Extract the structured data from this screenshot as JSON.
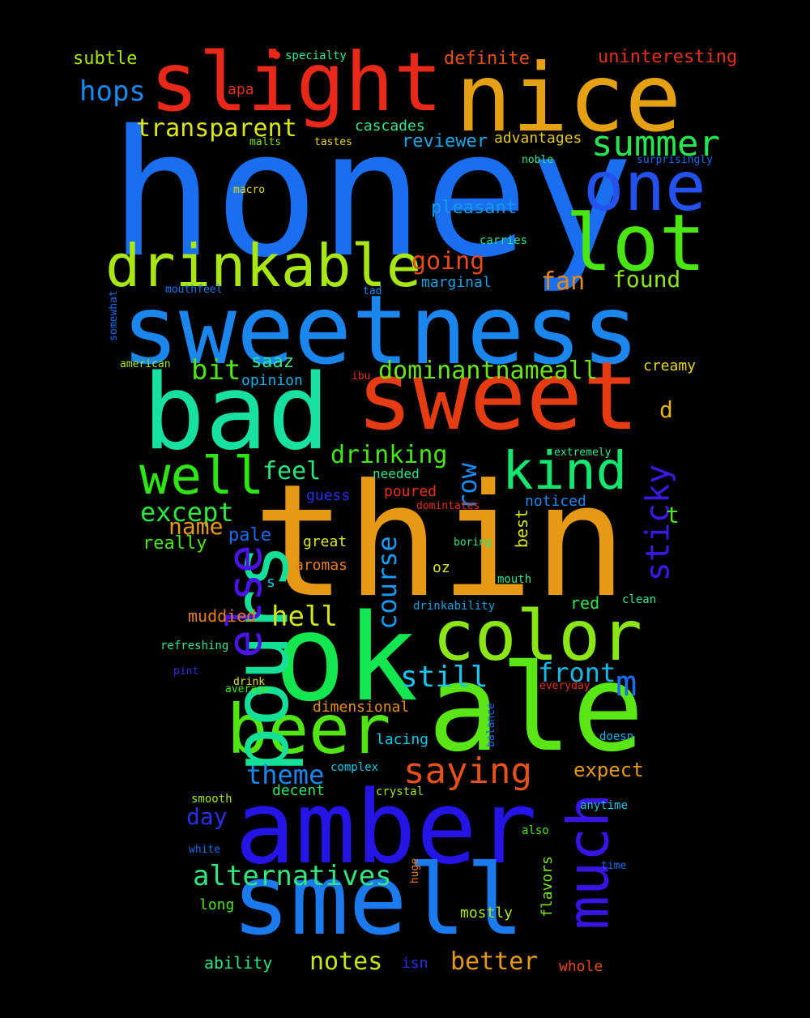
{
  "words": [
    {
      "text": "honey",
      "color": "#1a6ff0"
    },
    {
      "text": "thin",
      "color": "#e69914"
    },
    {
      "text": "sweetness",
      "color": "#1a86ee"
    },
    {
      "text": "sweet",
      "color": "#e63c14"
    },
    {
      "text": "nice",
      "color": "#e6a014"
    },
    {
      "text": "slight",
      "color": "#e82818"
    },
    {
      "text": "bad",
      "color": "#18e0a0"
    },
    {
      "text": "ok",
      "color": "#14e650"
    },
    {
      "text": "ale",
      "color": "#5ae614"
    },
    {
      "text": "amber",
      "color": "#2414e6"
    },
    {
      "text": "smell",
      "color": "#1a7aee"
    },
    {
      "text": "lot",
      "color": "#4ae614"
    },
    {
      "text": "one",
      "color": "#2452ee"
    },
    {
      "text": "drinkable",
      "color": "#a8e614"
    },
    {
      "text": "color",
      "color": "#8ae614"
    },
    {
      "text": "beer",
      "color": "#50e614"
    },
    {
      "text": "pours",
      "color": "#14e09a"
    },
    {
      "text": "well",
      "color": "#2ee614"
    },
    {
      "text": "kind",
      "color": "#14e670"
    },
    {
      "text": "much",
      "color": "#3a14e6"
    },
    {
      "text": "else",
      "color": "#4a14e6"
    },
    {
      "text": "summer",
      "color": "#28e650"
    },
    {
      "text": "saying",
      "color": "#e6501a"
    },
    {
      "text": "sticky",
      "color": "#3a1ae6"
    },
    {
      "text": "alternatives",
      "color": "#34e680"
    },
    {
      "text": "transparent",
      "color": "#dce614"
    },
    {
      "text": "hops",
      "color": "#1a8aee"
    },
    {
      "text": "dominantnameall",
      "color": "#6ae614"
    },
    {
      "text": "course",
      "color": "#1a9aee"
    },
    {
      "text": "still",
      "color": "#1ac4ee"
    },
    {
      "text": "front",
      "color": "#18b8e6"
    },
    {
      "text": "hell",
      "color": "#d2e614"
    },
    {
      "text": "except",
      "color": "#30e640"
    },
    {
      "text": "notes",
      "color": "#c8e614"
    },
    {
      "text": "better",
      "color": "#e69a14"
    },
    {
      "text": "theme",
      "color": "#1a88ee"
    },
    {
      "text": "going",
      "color": "#e64a1a"
    },
    {
      "text": "drinking",
      "color": "#48e614"
    },
    {
      "text": "found",
      "color": "#8ae614"
    },
    {
      "text": "feel",
      "color": "#2ae680"
    },
    {
      "text": "bit",
      "color": "#50e614"
    },
    {
      "text": "row",
      "color": "#1a8aee"
    },
    {
      "text": "fan",
      "color": "#e68a14"
    },
    {
      "text": "m",
      "color": "#1a6cee"
    },
    {
      "text": "name",
      "color": "#e69a14"
    },
    {
      "text": "expect",
      "color": "#e69a14"
    },
    {
      "text": "day",
      "color": "#2a30e6"
    },
    {
      "text": "reviewer",
      "color": "#14a8e6"
    },
    {
      "text": "definite",
      "color": "#e6501a"
    },
    {
      "text": "uninteresting",
      "color": "#e6301a"
    },
    {
      "text": "pleasant",
      "color": "#149ae6"
    },
    {
      "text": "subtle",
      "color": "#a8e614"
    },
    {
      "text": "saaz",
      "color": "#30e690"
    },
    {
      "text": "d",
      "color": "#e6b414"
    },
    {
      "text": "t",
      "color": "#48e614"
    },
    {
      "text": "pale",
      "color": "#1a6cee"
    },
    {
      "text": "muddied",
      "color": "#e6801a"
    },
    {
      "text": "really",
      "color": "#48e614"
    },
    {
      "text": "cascades",
      "color": "#30e690"
    },
    {
      "text": "advantages",
      "color": "#e6c814"
    },
    {
      "text": "marginal",
      "color": "#14a0e6"
    },
    {
      "text": "opinion",
      "color": "#14b0e6"
    },
    {
      "text": "creamy",
      "color": "#e6d814"
    },
    {
      "text": "best",
      "color": "#dce614"
    },
    {
      "text": "red",
      "color": "#30e650"
    },
    {
      "text": "apa",
      "color": "#e6301a"
    },
    {
      "text": "poured",
      "color": "#e6301a"
    },
    {
      "text": "guess",
      "color": "#2a30e6"
    },
    {
      "text": "needed",
      "color": "#28e690"
    },
    {
      "text": "noticed",
      "color": "#1a8aee"
    },
    {
      "text": "great",
      "color": "#dce614"
    },
    {
      "text": "aromas",
      "color": "#e6801a"
    },
    {
      "text": "oz",
      "color": "#dce614"
    },
    {
      "text": "dimensional",
      "color": "#e6901a"
    },
    {
      "text": "lacing",
      "color": "#14c8e6"
    },
    {
      "text": "decent",
      "color": "#28e660"
    },
    {
      "text": "ability",
      "color": "#2ae680"
    },
    {
      "text": "isn",
      "color": "#2a30e6"
    },
    {
      "text": "whole",
      "color": "#e64a1a"
    },
    {
      "text": "long",
      "color": "#48e614"
    },
    {
      "text": "mostly",
      "color": "#a8e614"
    },
    {
      "text": "flavors",
      "color": "#78e614"
    },
    {
      "text": "s",
      "color": "#14c8e6"
    },
    {
      "text": "specialty",
      "color": "#30e690"
    },
    {
      "text": "malts",
      "color": "#7ae614"
    },
    {
      "text": "tastes",
      "color": "#e6d814"
    },
    {
      "text": "noble",
      "color": "#30e690"
    },
    {
      "text": "surprisingly",
      "color": "#1a6cee"
    },
    {
      "text": "macro",
      "color": "#e6d814"
    },
    {
      "text": "carries",
      "color": "#28e690"
    },
    {
      "text": "mouthfeel",
      "color": "#1a7aee"
    },
    {
      "text": "tad",
      "color": "#1a8aee"
    },
    {
      "text": "somewhat",
      "color": "#1a6cee"
    },
    {
      "text": "american",
      "color": "#a8e614"
    },
    {
      "text": "ibu",
      "color": "#e6301a"
    },
    {
      "text": "extremely",
      "color": "#30e690"
    },
    {
      "text": "domintates",
      "color": "#e6301a"
    },
    {
      "text": "boring",
      "color": "#2ae680"
    },
    {
      "text": "mouth",
      "color": "#30e690"
    },
    {
      "text": "drinkability",
      "color": "#14a0e6"
    },
    {
      "text": "clean",
      "color": "#30e690"
    },
    {
      "text": "refreshing",
      "color": "#30e690"
    },
    {
      "text": "pint",
      "color": "#2a30e6"
    },
    {
      "text": "drink",
      "color": "#dce614"
    },
    {
      "text": "average",
      "color": "#48e614"
    },
    {
      "text": "everyday",
      "color": "#e6301a"
    },
    {
      "text": "balance",
      "color": "#1a6cee"
    },
    {
      "text": "doesn",
      "color": "#14b0e6"
    },
    {
      "text": "complex",
      "color": "#14c8e6"
    },
    {
      "text": "smooth",
      "color": "#a8e614"
    },
    {
      "text": "crystal",
      "color": "#a8e614"
    },
    {
      "text": "anytime",
      "color": "#14c8e6"
    },
    {
      "text": "also",
      "color": "#48e614"
    },
    {
      "text": "white",
      "color": "#1a6cee"
    },
    {
      "text": "time",
      "color": "#1a6cee"
    },
    {
      "text": "huge",
      "color": "#e6801a"
    }
  ],
  "colors": {
    "background": "#000000",
    "dot": "#e82818"
  }
}
